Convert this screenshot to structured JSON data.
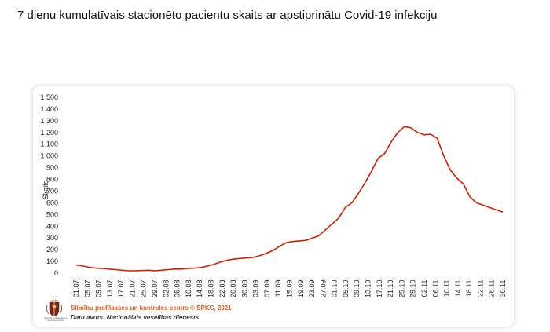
{
  "page": {
    "title": "7 dienu kumulatīvais stacionēto pacientu skaits ar apstiprinātu Covid-19 infekciju"
  },
  "footer": {
    "credit": "Slimību profilakses un kontroles centrs © SPKC, 2021",
    "source": "Datu avots: Nacionālais veselības dienests",
    "logo_text": "Slimību profilakses un kontroles centrs",
    "logo_icon": "coat-of-arms-icon"
  },
  "colors": {
    "line": "#cc2200",
    "credit": "#e05a1a"
  },
  "chart_data": {
    "type": "line",
    "title": "",
    "xlabel": "",
    "ylabel": "Skaits",
    "ylim": [
      0,
      1500
    ],
    "yticks": [
      0,
      100,
      200,
      300,
      400,
      500,
      600,
      700,
      800,
      900,
      1000,
      1100,
      1200,
      1300,
      1400,
      1500
    ],
    "ytick_labels": [
      "0",
      "100",
      "200",
      "300",
      "400",
      "500",
      "600",
      "700",
      "800",
      "900",
      "1 000",
      "1 100",
      "1 200",
      "1 300",
      "1 400",
      "1 500"
    ],
    "grid": false,
    "legend": "none",
    "x_tick_labels": [
      "01.07.",
      "05.07.",
      "09.07.",
      "13.07.",
      "17.07.",
      "21.07.",
      "25.07.",
      "29.07.",
      "02.08.",
      "06.08.",
      "10.08.",
      "14.08.",
      "18.08.",
      "22.08.",
      "26.08.",
      "30.08.",
      "03.09.",
      "07.09.",
      "11.09.",
      "15.09.",
      "19.09.",
      "23.09.",
      "27.09.",
      "01.10.",
      "05.10.",
      "09.10.",
      "13.10.",
      "17.10.",
      "21.10.",
      "25.10.",
      "29.10.",
      "02.11.",
      "06.11.",
      "10.11.",
      "14.11.",
      "18.11.",
      "22.11.",
      "26.11.",
      "30.11."
    ],
    "series": [
      {
        "values": [
          70,
          60,
          50,
          42,
          40,
          35,
          30,
          25,
          20,
          20,
          22,
          25,
          20,
          25,
          30,
          35,
          35,
          40,
          42,
          48,
          60,
          75,
          95,
          110,
          120,
          125,
          130,
          135,
          150,
          170,
          195,
          230,
          260,
          270,
          275,
          280,
          300,
          320,
          370,
          420,
          470,
          560,
          600,
          680,
          770,
          870,
          980,
          1020,
          1120,
          1200,
          1250,
          1240,
          1200,
          1180,
          1185,
          1150,
          1000,
          880,
          810,
          760,
          650,
          600,
          580,
          560,
          540,
          520
        ]
      }
    ]
  }
}
